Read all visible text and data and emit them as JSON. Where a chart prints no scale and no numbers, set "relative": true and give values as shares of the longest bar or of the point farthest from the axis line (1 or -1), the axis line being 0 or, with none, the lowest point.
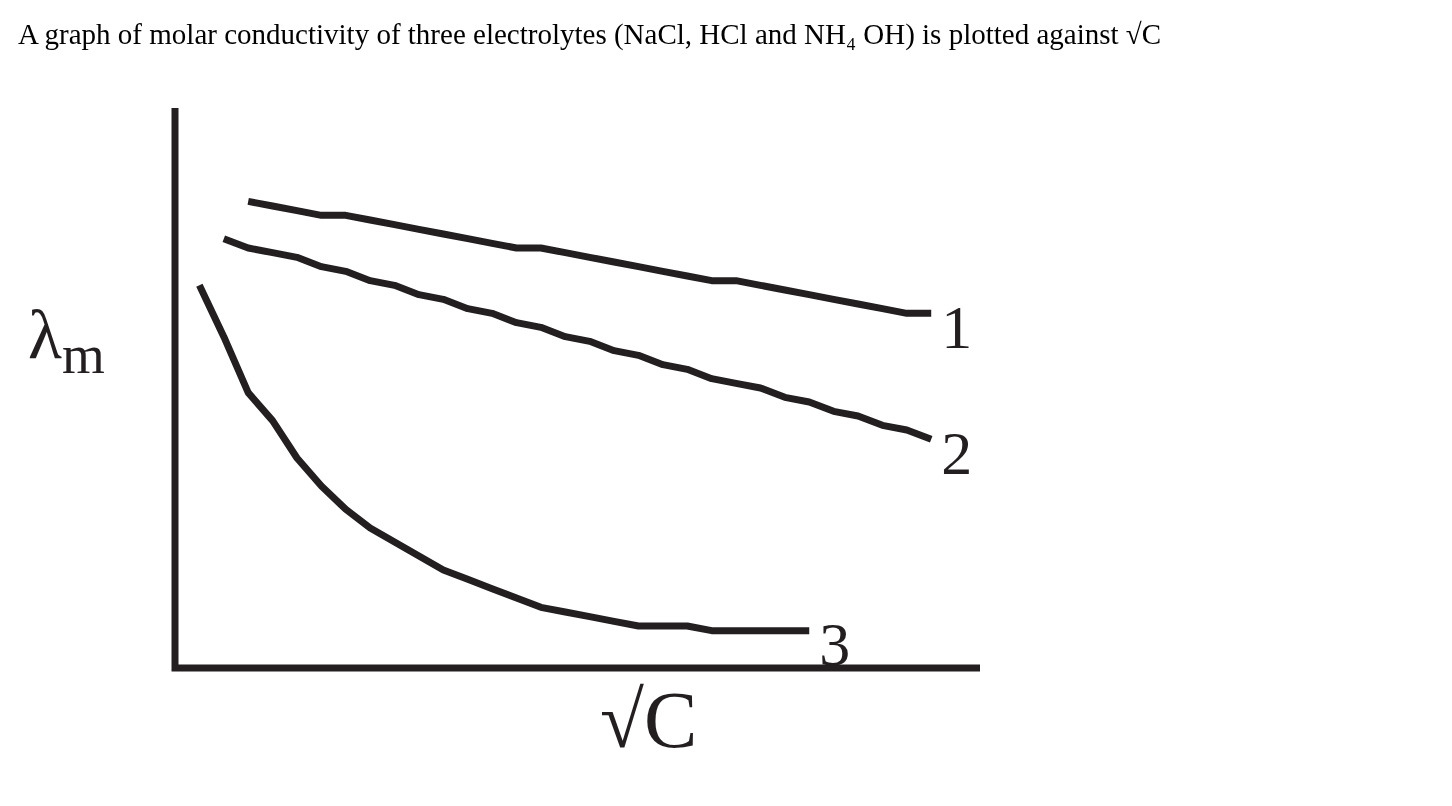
{
  "chart_data": {
    "type": "line",
    "title": "A graph of molar conductivity of three electrolytes (NaCl,  HCl and NH₄ OH) is plotted against √C",
    "xlabel": "√C",
    "ylabel": "λ$_{m}$",
    "relative": true,
    "legend": false,
    "marker": "none",
    "line_style": "solid",
    "categories": [
      null,
      null,
      null,
      null,
      null,
      null,
      null,
      null,
      null,
      null,
      null,
      null,
      null,
      null,
      null,
      null,
      null,
      null,
      null,
      null,
      null,
      null,
      null,
      null,
      null,
      null,
      null,
      null,
      null,
      null,
      null,
      null,
      null,
      null
    ],
    "series": [
      {
        "name": "1",
        "color": "#231f20",
        "values": [
          null,
          null,
          null,
          1.0,
          0.99,
          0.98,
          0.97,
          0.97,
          0.96,
          0.95,
          0.94,
          0.93,
          0.92,
          0.91,
          0.9,
          0.9,
          0.89,
          0.88,
          0.87,
          0.86,
          0.85,
          0.84,
          0.83,
          0.83,
          0.82,
          0.81,
          0.8,
          0.79,
          0.78,
          0.77,
          0.76,
          0.76,
          null,
          null
        ]
      },
      {
        "name": "2",
        "color": "#231f20",
        "values": [
          null,
          null,
          0.92,
          0.9,
          0.89,
          0.88,
          0.86,
          0.85,
          0.83,
          0.82,
          0.8,
          0.79,
          0.77,
          0.76,
          0.74,
          0.73,
          0.71,
          0.7,
          0.68,
          0.67,
          0.65,
          0.64,
          0.62,
          0.61,
          0.6,
          0.58,
          0.57,
          0.55,
          0.54,
          0.52,
          0.51,
          0.49,
          null,
          null
        ]
      },
      {
        "name": "3",
        "color": "#231f20",
        "values": [
          null,
          0.82,
          0.71,
          0.59,
          0.53,
          0.45,
          0.39,
          0.34,
          0.3,
          0.27,
          0.24,
          0.21,
          0.19,
          0.17,
          0.15,
          0.13,
          0.12,
          0.11,
          0.1,
          0.09,
          0.09,
          0.09,
          0.08,
          0.08,
          0.08,
          0.08,
          0.08,
          null,
          null,
          null,
          null,
          null,
          null,
          null
        ]
      }
    ]
  }
}
